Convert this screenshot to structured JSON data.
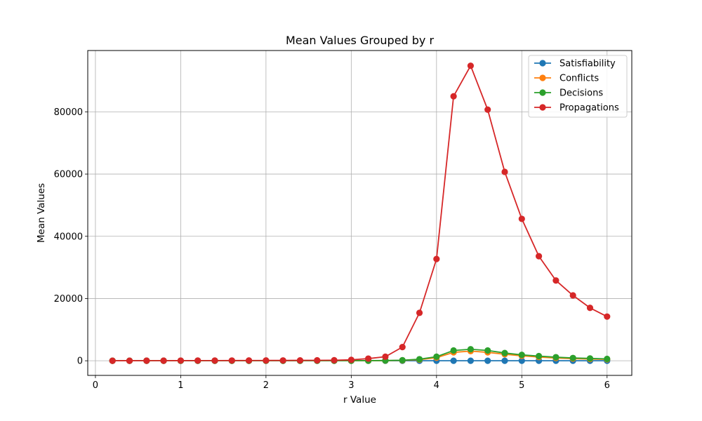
{
  "chart_data": {
    "type": "line",
    "title": "Mean Values Grouped by r",
    "xlabel": "r Value",
    "ylabel": "Mean Values",
    "xlim": [
      -0.09,
      6.29
    ],
    "ylim": [
      -4700,
      99700
    ],
    "xticks": [
      0,
      1,
      2,
      3,
      4,
      5,
      6
    ],
    "yticks": [
      0,
      20000,
      40000,
      60000,
      80000
    ],
    "grid": true,
    "legend_position": "top-right",
    "x": [
      0.2,
      0.4,
      0.6,
      0.8,
      1.0,
      1.2,
      1.4,
      1.6,
      1.8,
      2.0,
      2.2,
      2.4,
      2.6,
      2.8,
      3.0,
      3.2,
      3.4,
      3.6,
      3.8,
      4.0,
      4.2,
      4.4,
      4.6,
      4.8,
      5.0,
      5.2,
      5.4,
      5.6,
      5.8,
      6.0
    ],
    "series": [
      {
        "name": "Satisfiability",
        "color": "#1f77b4",
        "values": [
          1,
          1,
          1,
          1,
          1,
          1,
          1,
          1,
          1,
          1,
          1,
          1,
          1,
          1,
          1,
          1,
          1,
          0.95,
          0.7,
          0.3,
          0.05,
          0,
          0,
          0,
          0,
          0,
          0,
          0,
          0,
          0
        ]
      },
      {
        "name": "Conflicts",
        "color": "#ff7f0e",
        "values": [
          0,
          0,
          0,
          0,
          0,
          0,
          0,
          0,
          0,
          1,
          1,
          2,
          3,
          5,
          10,
          20,
          50,
          120,
          350,
          1000,
          2700,
          3100,
          2700,
          2100,
          1600,
          1200,
          900,
          700,
          550,
          450
        ]
      },
      {
        "name": "Decisions",
        "color": "#2ca02c",
        "values": [
          5,
          5,
          6,
          6,
          7,
          8,
          9,
          10,
          11,
          12,
          14,
          16,
          18,
          22,
          30,
          45,
          80,
          180,
          500,
          1300,
          3300,
          3700,
          3300,
          2500,
          1900,
          1500,
          1150,
          900,
          750,
          600
        ]
      },
      {
        "name": "Propagations",
        "color": "#d62728",
        "values": [
          10,
          20,
          30,
          40,
          50,
          60,
          70,
          80,
          90,
          100,
          110,
          130,
          150,
          180,
          300,
          700,
          1300,
          4400,
          15400,
          32700,
          85000,
          94800,
          80700,
          60700,
          45600,
          33600,
          25800,
          21000,
          17000,
          14200
        ]
      }
    ]
  }
}
